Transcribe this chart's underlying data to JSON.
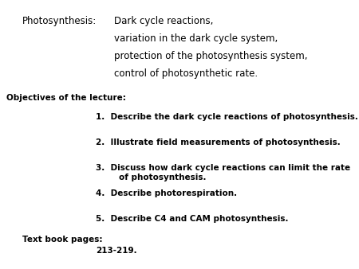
{
  "background_color": "#ffffff",
  "figsize": [
    4.5,
    3.38
  ],
  "dpi": 100,
  "label_photosynthesis": "Photosynthesis:",
  "topic_lines": [
    "Dark cycle reactions,",
    "variation in the dark cycle system,",
    "protection of the photosynthesis system,",
    "control of photosynthetic rate."
  ],
  "topic_fontsize": 8.5,
  "objectives_label": "Objectives of the lecture:",
  "objectives_fontsize": 7.5,
  "numbered_items": [
    "Describe the dark cycle reactions of photosynthesis.",
    "Illustrate field measurements of photosynthesis.",
    "Discuss how dark cycle reactions can limit the rate\n        of photosynthesis.",
    "Describe photorespiration.",
    "Describe C4 and CAM photosynthesis."
  ],
  "numbered_fontsize": 7.5,
  "textbook_label": "Text book pages:",
  "textbook_pages": "213-219.",
  "textbook_fontsize": 7.5
}
